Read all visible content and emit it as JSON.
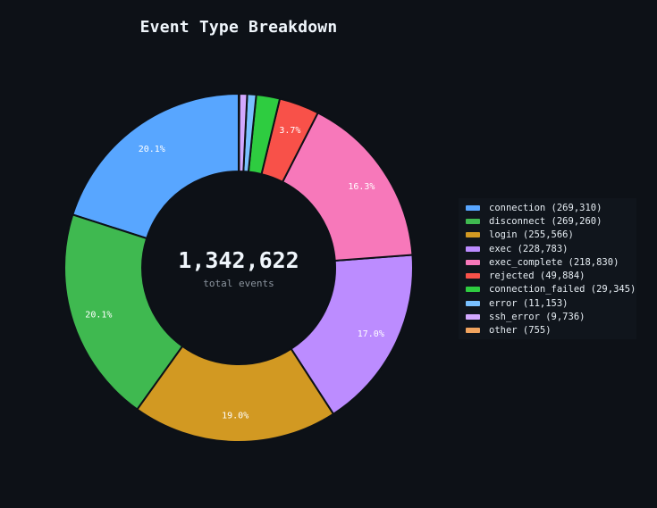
{
  "chart_data": {
    "type": "pie",
    "style": "donut",
    "title": "Event Type Breakdown",
    "center": {
      "total": "1,342,622",
      "subtitle": "total events"
    },
    "slices": [
      {
        "name": "connection",
        "value": 269310,
        "color": "#58a6ff",
        "pct_label": "20.1%",
        "legend": "connection  (269,310)"
      },
      {
        "name": "disconnect",
        "value": 269260,
        "color": "#3fb950",
        "pct_label": "20.1%",
        "legend": "disconnect  (269,260)"
      },
      {
        "name": "login",
        "value": 255566,
        "color": "#d29922",
        "pct_label": "19.0%",
        "legend": "login  (255,566)"
      },
      {
        "name": "exec",
        "value": 228783,
        "color": "#bc8cff",
        "pct_label": "17.0%",
        "legend": "exec  (228,783)"
      },
      {
        "name": "exec_complete",
        "value": 218830,
        "color": "#f778ba",
        "pct_label": "16.3%",
        "legend": "exec_complete  (218,830)"
      },
      {
        "name": "rejected",
        "value": 49884,
        "color": "#f85149",
        "pct_label": "3.7%",
        "legend": "rejected  (49,884)"
      },
      {
        "name": "connection_failed",
        "value": 29345,
        "color": "#2ecc40",
        "pct_label": "",
        "legend": "connection_failed  (29,345)"
      },
      {
        "name": "error",
        "value": 11153,
        "color": "#79c0ff",
        "pct_label": "",
        "legend": "error  (11,153)"
      },
      {
        "name": "ssh_error",
        "value": 9736,
        "color": "#d2a8ff",
        "pct_label": "",
        "legend": "ssh_error  (9,736)"
      },
      {
        "name": "other",
        "value": 755,
        "color": "#f0a35e",
        "pct_label": "",
        "legend": "other  (755)"
      }
    ],
    "start_angle": "top",
    "direction": "counterclockwise",
    "legend_position": "right"
  }
}
